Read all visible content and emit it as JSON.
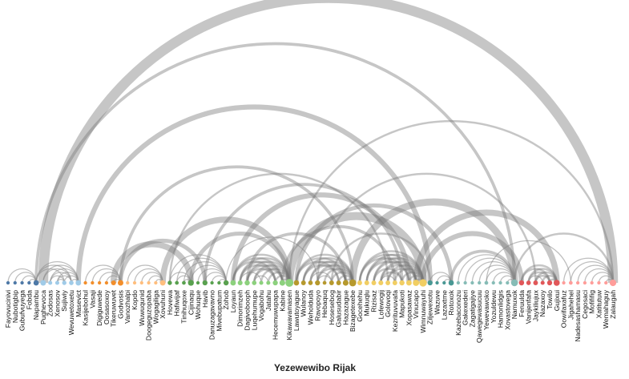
{
  "title": "Yezewewibo Rijak",
  "groups": [
    {
      "id": 1,
      "color": "#4e79a7"
    },
    {
      "id": 2,
      "color": "#a0cbe8"
    },
    {
      "id": 3,
      "color": "#f28e2b"
    },
    {
      "id": 4,
      "color": "#ffbe7d"
    },
    {
      "id": 5,
      "color": "#59a14f"
    },
    {
      "id": 6,
      "color": "#8cd17d"
    },
    {
      "id": 7,
      "color": "#b6992d"
    },
    {
      "id": 8,
      "color": "#f1ce63"
    },
    {
      "id": 9,
      "color": "#499894"
    },
    {
      "id": 10,
      "color": "#86bcb6"
    },
    {
      "id": 11,
      "color": "#e15759"
    },
    {
      "id": 12,
      "color": "#ff9d9a"
    }
  ],
  "nodes": [
    {
      "name": "Fayovucinivi",
      "group": 1
    },
    {
      "name": "Nubotigbip",
      "group": 1
    },
    {
      "name": "Gubufvuyega",
      "group": 1
    },
    {
      "name": "Fobda",
      "group": 1
    },
    {
      "name": "Napambu",
      "group": 1
    },
    {
      "name": "Pughevoca",
      "group": 2
    },
    {
      "name": "Zodosas",
      "group": 2
    },
    {
      "name": "Xenosov",
      "group": 2
    },
    {
      "name": "Sujiwiy",
      "group": 2
    },
    {
      "name": "Wevuwetoxetu",
      "group": 2
    },
    {
      "name": "Masevict",
      "group": 2
    },
    {
      "name": "Kasijebohul",
      "group": 3
    },
    {
      "name": "Vasaji",
      "group": 3
    },
    {
      "name": "Digiguwede",
      "group": 3
    },
    {
      "name": "Oosasoxoy",
      "group": 3
    },
    {
      "name": "Tikeruwuvet",
      "group": 3
    },
    {
      "name": "Godvosis",
      "group": 3
    },
    {
      "name": "Vanozhalpi",
      "group": 4
    },
    {
      "name": "Kopdo",
      "group": 4
    },
    {
      "name": "Wuwuqunid",
      "group": 4
    },
    {
      "name": "Doogeguzopaba",
      "group": 4
    },
    {
      "name": "Wogagiliga",
      "group": 4
    },
    {
      "name": "Xovuhuni",
      "group": 4
    },
    {
      "name": "Hovewa",
      "group": 5
    },
    {
      "name": "Hafiwijaf",
      "group": 5
    },
    {
      "name": "Tinihuqoxe",
      "group": 5
    },
    {
      "name": "Cijinaqu",
      "group": 5
    },
    {
      "name": "Wohuque",
      "group": 5
    },
    {
      "name": "Havib",
      "group": 5
    },
    {
      "name": "Danuzagavavno",
      "group": 5
    },
    {
      "name": "Mivebupatum",
      "group": 5
    },
    {
      "name": "Zohob",
      "group": 5
    },
    {
      "name": "Loyaun",
      "group": 6
    },
    {
      "name": "Dimorimzeh",
      "group": 6
    },
    {
      "name": "Dagivobooph",
      "group": 6
    },
    {
      "name": "Luqehumupe",
      "group": 6
    },
    {
      "name": "Vogabohu",
      "group": 6
    },
    {
      "name": "Jatahu",
      "group": 6
    },
    {
      "name": "Hecemuwupapa",
      "group": 6
    },
    {
      "name": "Kabine",
      "group": 6
    },
    {
      "name": "Kikawavamasen",
      "group": 6
    },
    {
      "name": "Lawutoyague",
      "group": 7
    },
    {
      "name": "Wulanoy",
      "group": 7
    },
    {
      "name": "Weholduda",
      "group": 7
    },
    {
      "name": "Ravopoyo",
      "group": 7
    },
    {
      "name": "Hebaquq",
      "group": 7
    },
    {
      "name": "Hosesebog",
      "group": 7
    },
    {
      "name": "Galusudabir",
      "group": 7
    },
    {
      "name": "Hazazague",
      "group": 7
    },
    {
      "name": "Bizagetexebe",
      "group": 7
    },
    {
      "name": "Gocehehu",
      "group": 8
    },
    {
      "name": "Mukuqlu",
      "group": 8
    },
    {
      "name": "Rizisaz",
      "group": 8
    },
    {
      "name": "Lofewogij",
      "group": 8
    },
    {
      "name": "Golovoqi",
      "group": 8
    },
    {
      "name": "Kezrituvuvafa",
      "group": 8
    },
    {
      "name": "Mapukoti",
      "group": 8
    },
    {
      "name": "Xopasawaz",
      "group": 8
    },
    {
      "name": "Vinucapo",
      "group": 8
    },
    {
      "name": "Wimnuwayuhi",
      "group": 8
    },
    {
      "name": "Ziljewexotu",
      "group": 9
    },
    {
      "name": "Wazuve",
      "group": 9
    },
    {
      "name": "Lazaxtme",
      "group": 9
    },
    {
      "name": "Rotoxok",
      "group": 9
    },
    {
      "name": "Kazebaconozu",
      "group": 10
    },
    {
      "name": "Gakexederi",
      "group": 10
    },
    {
      "name": "Zagatigajiye",
      "group": 10
    },
    {
      "name": "Qawegewasucuu",
      "group": 10
    },
    {
      "name": "Yewevawoko",
      "group": 10
    },
    {
      "name": "Yozuldewu",
      "group": 10
    },
    {
      "name": "Hamonlidgis",
      "group": 10
    },
    {
      "name": "Xovastovega",
      "group": 10
    },
    {
      "name": "Namuxok",
      "group": 10
    },
    {
      "name": "Feruulda",
      "group": 11
    },
    {
      "name": "Vanijenfafa",
      "group": 11
    },
    {
      "name": "Jaykiliujux",
      "group": 11
    },
    {
      "name": "Nazaxoy",
      "group": 11
    },
    {
      "name": "Towilo",
      "group": 11
    },
    {
      "name": "Gujixui",
      "group": 11
    },
    {
      "name": "Oowifaxafuz",
      "group": 12
    },
    {
      "name": "Jigahehel",
      "group": 12
    },
    {
      "name": "Nadesashamasu",
      "group": 12
    },
    {
      "name": "Cegosaci",
      "group": 12
    },
    {
      "name": "Mofififig",
      "group": 12
    },
    {
      "name": "Xatitutuw",
      "group": 12
    },
    {
      "name": "Wemahaguy",
      "group": 12
    },
    {
      "name": "Zalaugah",
      "group": 12
    }
  ],
  "links": [
    {
      "source": 0,
      "target": 4,
      "value": 1
    },
    {
      "source": 1,
      "target": 4,
      "value": 1
    },
    {
      "source": 2,
      "target": 4,
      "value": 1
    },
    {
      "source": 3,
      "target": 4,
      "value": 1
    },
    {
      "source": 5,
      "target": 10,
      "value": 1
    },
    {
      "source": 6,
      "target": 10,
      "value": 1
    },
    {
      "source": 7,
      "target": 10,
      "value": 1
    },
    {
      "source": 8,
      "target": 10,
      "value": 1
    },
    {
      "source": 9,
      "target": 10,
      "value": 1
    },
    {
      "source": 5,
      "target": 9,
      "value": 1
    },
    {
      "source": 6,
      "target": 9,
      "value": 1
    },
    {
      "source": 7,
      "target": 9,
      "value": 1
    },
    {
      "source": 6,
      "target": 8,
      "value": 1
    },
    {
      "source": 7,
      "target": 8,
      "value": 1
    },
    {
      "source": 4,
      "target": 10,
      "value": 1
    },
    {
      "source": 4,
      "target": 8,
      "value": 1
    },
    {
      "source": 4,
      "target": 9,
      "value": 1
    },
    {
      "source": 11,
      "target": 16,
      "value": 1
    },
    {
      "source": 12,
      "target": 16,
      "value": 1
    },
    {
      "source": 13,
      "target": 16,
      "value": 1
    },
    {
      "source": 14,
      "target": 16,
      "value": 1
    },
    {
      "source": 15,
      "target": 16,
      "value": 1
    },
    {
      "source": 17,
      "target": 22,
      "value": 1
    },
    {
      "source": 18,
      "target": 22,
      "value": 1
    },
    {
      "source": 19,
      "target": 22,
      "value": 1
    },
    {
      "source": 20,
      "target": 22,
      "value": 1
    },
    {
      "source": 21,
      "target": 22,
      "value": 1
    },
    {
      "source": 15,
      "target": 26,
      "value": 6
    },
    {
      "source": 16,
      "target": 28,
      "value": 4
    },
    {
      "source": 23,
      "target": 26,
      "value": 1
    },
    {
      "source": 24,
      "target": 26,
      "value": 1
    },
    {
      "source": 25,
      "target": 26,
      "value": 1
    },
    {
      "source": 23,
      "target": 31,
      "value": 1
    },
    {
      "source": 24,
      "target": 31,
      "value": 1
    },
    {
      "source": 25,
      "target": 31,
      "value": 1
    },
    {
      "source": 26,
      "target": 31,
      "value": 1
    },
    {
      "source": 27,
      "target": 31,
      "value": 1
    },
    {
      "source": 28,
      "target": 31,
      "value": 1
    },
    {
      "source": 29,
      "target": 31,
      "value": 1
    },
    {
      "source": 30,
      "target": 31,
      "value": 1
    },
    {
      "source": 32,
      "target": 40,
      "value": 2
    },
    {
      "source": 33,
      "target": 40,
      "value": 2
    },
    {
      "source": 34,
      "target": 40,
      "value": 2
    },
    {
      "source": 35,
      "target": 40,
      "value": 2
    },
    {
      "source": 36,
      "target": 40,
      "value": 2
    },
    {
      "source": 37,
      "target": 40,
      "value": 2
    },
    {
      "source": 38,
      "target": 40,
      "value": 2
    },
    {
      "source": 39,
      "target": 40,
      "value": 2
    },
    {
      "source": 32,
      "target": 39,
      "value": 2
    },
    {
      "source": 33,
      "target": 39,
      "value": 2
    },
    {
      "source": 34,
      "target": 39,
      "value": 2
    },
    {
      "source": 35,
      "target": 39,
      "value": 2
    },
    {
      "source": 32,
      "target": 38,
      "value": 2
    },
    {
      "source": 33,
      "target": 38,
      "value": 2
    },
    {
      "source": 34,
      "target": 38,
      "value": 2
    },
    {
      "source": 35,
      "target": 37,
      "value": 1
    },
    {
      "source": 33,
      "target": 36,
      "value": 1
    },
    {
      "source": 41,
      "target": 49,
      "value": 2
    },
    {
      "source": 42,
      "target": 49,
      "value": 2
    },
    {
      "source": 43,
      "target": 49,
      "value": 2
    },
    {
      "source": 44,
      "target": 49,
      "value": 2
    },
    {
      "source": 45,
      "target": 49,
      "value": 2
    },
    {
      "source": 46,
      "target": 49,
      "value": 2
    },
    {
      "source": 47,
      "target": 49,
      "value": 2
    },
    {
      "source": 48,
      "target": 49,
      "value": 2
    },
    {
      "source": 41,
      "target": 48,
      "value": 2
    },
    {
      "source": 42,
      "target": 48,
      "value": 2
    },
    {
      "source": 43,
      "target": 48,
      "value": 2
    },
    {
      "source": 44,
      "target": 48,
      "value": 2
    },
    {
      "source": 41,
      "target": 47,
      "value": 2
    },
    {
      "source": 42,
      "target": 47,
      "value": 2
    },
    {
      "source": 43,
      "target": 46,
      "value": 1
    },
    {
      "source": 44,
      "target": 46,
      "value": 1
    },
    {
      "source": 50,
      "target": 59,
      "value": 2
    },
    {
      "source": 51,
      "target": 59,
      "value": 2
    },
    {
      "source": 52,
      "target": 59,
      "value": 2
    },
    {
      "source": 53,
      "target": 59,
      "value": 2
    },
    {
      "source": 54,
      "target": 59,
      "value": 2
    },
    {
      "source": 55,
      "target": 59,
      "value": 2
    },
    {
      "source": 56,
      "target": 59,
      "value": 2
    },
    {
      "source": 57,
      "target": 59,
      "value": 2
    },
    {
      "source": 58,
      "target": 59,
      "value": 2
    },
    {
      "source": 50,
      "target": 58,
      "value": 2
    },
    {
      "source": 51,
      "target": 58,
      "value": 2
    },
    {
      "source": 52,
      "target": 58,
      "value": 2
    },
    {
      "source": 53,
      "target": 58,
      "value": 2
    },
    {
      "source": 54,
      "target": 58,
      "value": 2
    },
    {
      "source": 50,
      "target": 57,
      "value": 2
    },
    {
      "source": 51,
      "target": 57,
      "value": 2
    },
    {
      "source": 52,
      "target": 56,
      "value": 2
    },
    {
      "source": 53,
      "target": 56,
      "value": 2
    },
    {
      "source": 53,
      "target": 55,
      "value": 1
    },
    {
      "source": 60,
      "target": 63,
      "value": 1
    },
    {
      "source": 61,
      "target": 63,
      "value": 1
    },
    {
      "source": 62,
      "target": 63,
      "value": 1
    },
    {
      "source": 64,
      "target": 72,
      "value": 1
    },
    {
      "source": 65,
      "target": 72,
      "value": 1
    },
    {
      "source": 66,
      "target": 72,
      "value": 1
    },
    {
      "source": 67,
      "target": 72,
      "value": 1
    },
    {
      "source": 68,
      "target": 72,
      "value": 1
    },
    {
      "source": 69,
      "target": 72,
      "value": 1
    },
    {
      "source": 70,
      "target": 72,
      "value": 1
    },
    {
      "source": 71,
      "target": 72,
      "value": 1
    },
    {
      "source": 73,
      "target": 78,
      "value": 2
    },
    {
      "source": 74,
      "target": 78,
      "value": 2
    },
    {
      "source": 75,
      "target": 78,
      "value": 2
    },
    {
      "source": 76,
      "target": 78,
      "value": 2
    },
    {
      "source": 77,
      "target": 78,
      "value": 2
    },
    {
      "source": 73,
      "target": 77,
      "value": 2
    },
    {
      "source": 74,
      "target": 77,
      "value": 2
    },
    {
      "source": 75,
      "target": 77,
      "value": 2
    },
    {
      "source": 74,
      "target": 76,
      "value": 1
    },
    {
      "source": 79,
      "target": 86,
      "value": 1
    },
    {
      "source": 80,
      "target": 86,
      "value": 1
    },
    {
      "source": 81,
      "target": 86,
      "value": 1
    },
    {
      "source": 82,
      "target": 86,
      "value": 1
    },
    {
      "source": 83,
      "target": 86,
      "value": 1
    },
    {
      "source": 84,
      "target": 86,
      "value": 1
    },
    {
      "source": 85,
      "target": 86,
      "value": 1
    },
    {
      "source": 5,
      "target": 86,
      "value": 10
    },
    {
      "source": 4,
      "target": 72,
      "value": 3
    },
    {
      "source": 10,
      "target": 60,
      "value": 5
    },
    {
      "source": 16,
      "target": 49,
      "value": 3
    },
    {
      "source": 22,
      "target": 40,
      "value": 6
    },
    {
      "source": 23,
      "target": 54,
      "value": 2
    },
    {
      "source": 26,
      "target": 40,
      "value": 4
    },
    {
      "source": 28,
      "target": 56,
      "value": 3
    },
    {
      "source": 31,
      "target": 44,
      "value": 1
    },
    {
      "source": 32,
      "target": 57,
      "value": 5
    },
    {
      "source": 34,
      "target": 48,
      "value": 3
    },
    {
      "source": 40,
      "target": 59,
      "value": 8
    },
    {
      "source": 39,
      "target": 55,
      "value": 3
    },
    {
      "source": 41,
      "target": 63,
      "value": 4
    },
    {
      "source": 44,
      "target": 75,
      "value": 2
    },
    {
      "source": 40,
      "target": 86,
      "value": 2
    },
    {
      "source": 49,
      "target": 72,
      "value": 7
    },
    {
      "source": 46,
      "target": 60,
      "value": 2
    },
    {
      "source": 58,
      "target": 78,
      "value": 6
    },
    {
      "source": 59,
      "target": 73,
      "value": 5
    },
    {
      "source": 63,
      "target": 72,
      "value": 3
    },
    {
      "source": 68,
      "target": 80,
      "value": 1
    },
    {
      "source": 72,
      "target": 86,
      "value": 2
    }
  ]
}
